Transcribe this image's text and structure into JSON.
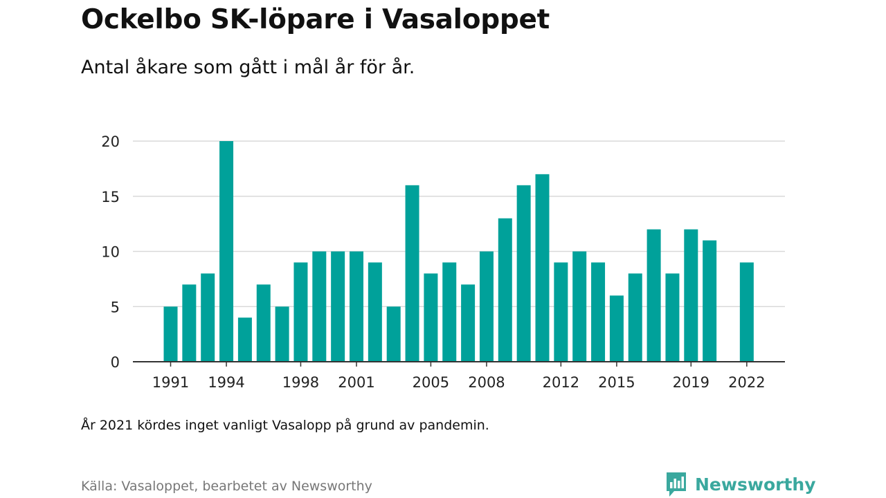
{
  "header": {
    "title": "Ockelbo SK-löpare i Vasaloppet",
    "subtitle": "Antal åkare som gått i mål år för år."
  },
  "footer": {
    "note": "År 2021 kördes inget vanligt Vasalopp på grund av pandemin.",
    "source": "Källa: Vasaloppet, bearbetet av Newsworthy",
    "brand": "Newsworthy",
    "brand_icon": "newsworthy-logo-icon"
  },
  "colors": {
    "bar": "#00a19a",
    "grid": "#d9d9d9",
    "axis": "#333333",
    "brand": "#3aa89e"
  },
  "chart_data": {
    "type": "bar",
    "title": "Ockelbo SK-löpare i Vasaloppet",
    "subtitle": "Antal åkare som gått i mål år för år.",
    "xlabel": "",
    "ylabel": "",
    "ylim": [
      0,
      20
    ],
    "yticks": [
      0,
      5,
      10,
      15,
      20
    ],
    "xticks": [
      1991,
      1994,
      1998,
      2001,
      2005,
      2008,
      2012,
      2015,
      2019,
      2022
    ],
    "xlim": [
      1990,
      2023
    ],
    "grid": true,
    "legend": "none",
    "categories": [
      1991,
      1992,
      1993,
      1994,
      1995,
      1996,
      1997,
      1998,
      1999,
      2000,
      2001,
      2002,
      2003,
      2004,
      2005,
      2006,
      2007,
      2008,
      2009,
      2010,
      2011,
      2012,
      2013,
      2014,
      2015,
      2016,
      2017,
      2018,
      2019,
      2020,
      2022
    ],
    "values": [
      5,
      7,
      8,
      20,
      4,
      7,
      5,
      9,
      10,
      10,
      10,
      9,
      5,
      16,
      8,
      9,
      7,
      10,
      13,
      16,
      17,
      9,
      10,
      9,
      6,
      8,
      12,
      8,
      12,
      11,
      9
    ]
  }
}
